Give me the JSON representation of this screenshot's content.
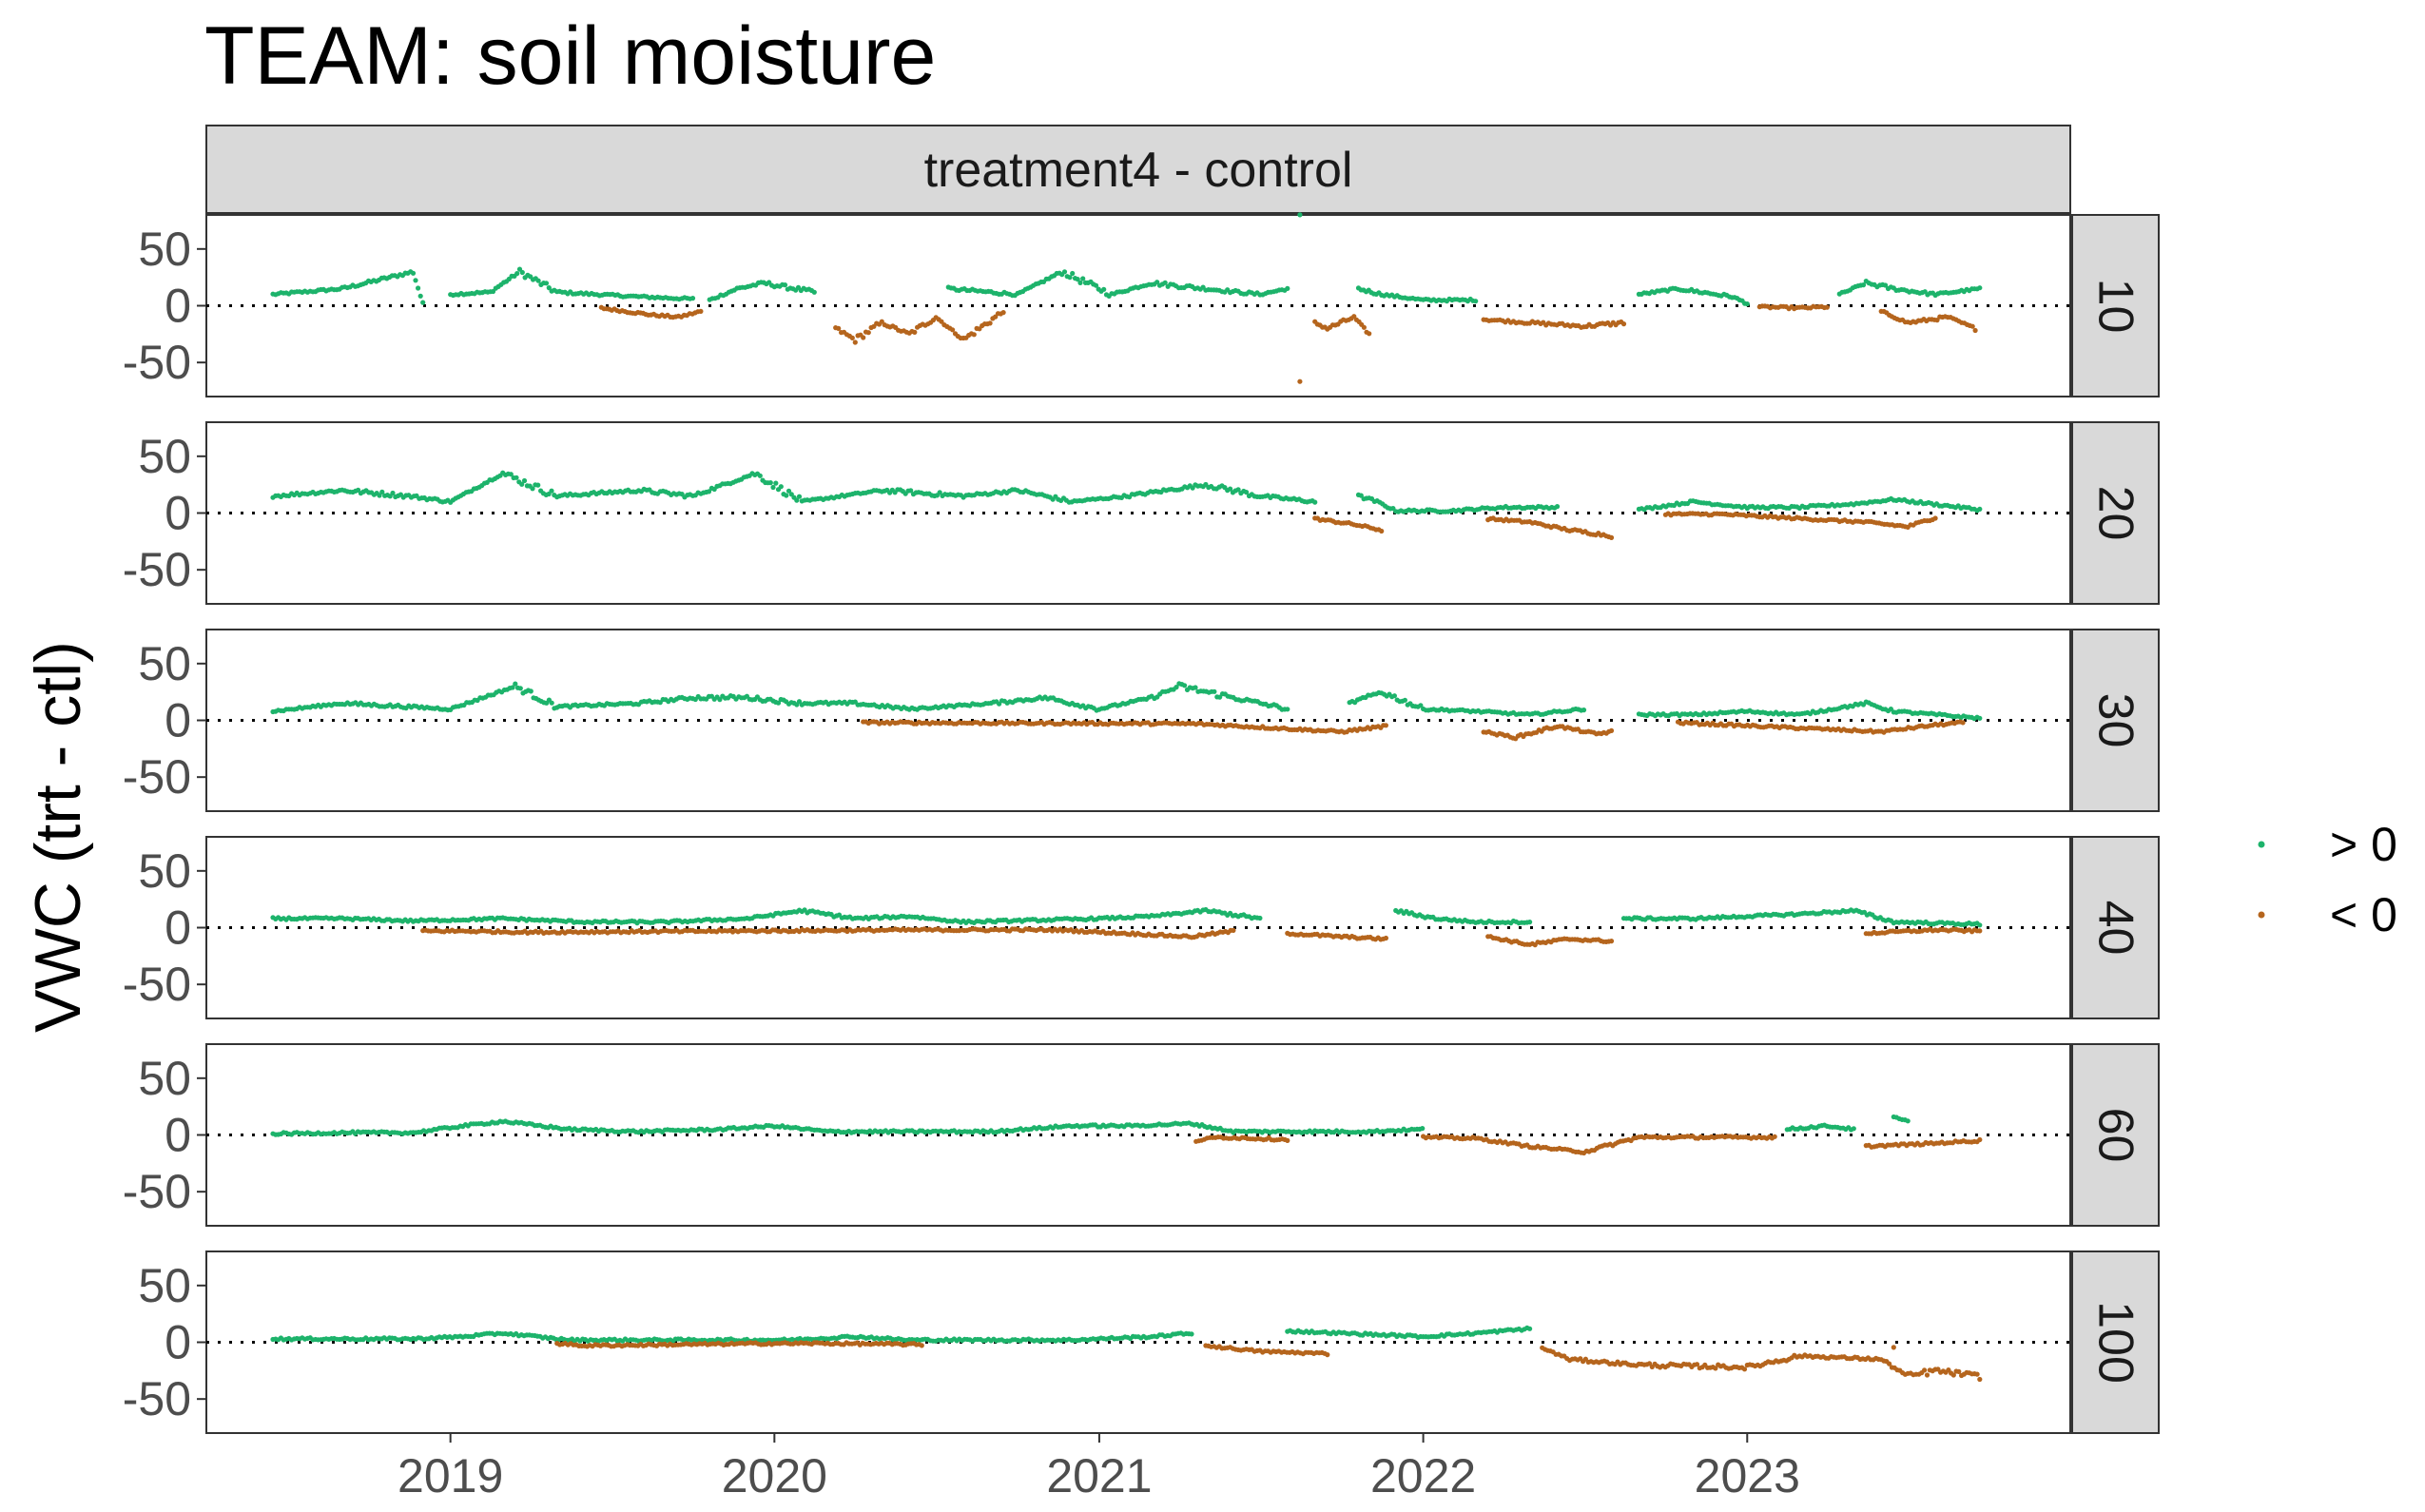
{
  "chart_data": {
    "type": "scatter",
    "title": "TEAM: soil moisture",
    "column_strip": "treatment4 - control",
    "ylabel": "VWC (trt - ctl)",
    "xlabel": "",
    "ylim": [
      -80,
      80
    ],
    "xlim": [
      "2018-04-01",
      "2023-12-31"
    ],
    "y_ticks": [
      50,
      0,
      -50
    ],
    "y_tick_labels": [
      "50",
      "0",
      "-50"
    ],
    "x_ticks": [
      "2019-01-01",
      "2020-01-01",
      "2021-01-01",
      "2022-01-01",
      "2023-01-01"
    ],
    "x_tick_labels": [
      "2019",
      "2020",
      "2021",
      "2022",
      "2023"
    ],
    "reference_line": {
      "y": 0,
      "style": "dotted",
      "color": "#000000"
    },
    "grid": false,
    "legend": {
      "placement": "right",
      "entries": [
        {
          "label": "> 0",
          "color": "#1db36b"
        },
        {
          "label": "< 0",
          "color": "#b5651d"
        }
      ]
    },
    "colors": {
      "positive": "#1db36b",
      "negative": "#b5651d"
    },
    "panels": [
      {
        "depth": "10",
        "series": [
          {
            "x": [
              "2018-06-15",
              "2018-09-01",
              "2018-11-20",
              "2018-12-01"
            ],
            "y": [
              10,
              15,
              30,
              2
            ]
          },
          {
            "x": [
              "2019-01-01",
              "2019-02-15",
              "2019-03-20",
              "2019-05-01",
              "2019-06-15",
              "2019-08-01",
              "2019-10-01"
            ],
            "y": [
              10,
              12,
              30,
              12,
              10,
              8,
              6
            ]
          },
          {
            "x": [
              "2019-06-20",
              "2019-08-15",
              "2019-09-15",
              "2019-10-10"
            ],
            "y": [
              -2,
              -8,
              -10,
              -5
            ]
          },
          {
            "x": [
              "2019-10-20",
              "2019-11-20",
              "2019-12-20",
              "2020-02-15"
            ],
            "y": [
              5,
              15,
              20,
              12
            ]
          },
          {
            "x": [
              "2020-03-10",
              "2020-04-01",
              "2020-05-01",
              "2020-06-01",
              "2020-07-01",
              "2020-08-01",
              "2020-09-15"
            ],
            "y": [
              -20,
              -30,
              -15,
              -25,
              -10,
              -30,
              -5
            ]
          },
          {
            "x": [
              "2020-07-15",
              "2020-10-01",
              "2020-11-20",
              "2021-01-15",
              "2021-03-01",
              "2021-05-01",
              "2021-07-01",
              "2021-08-01"
            ],
            "y": [
              15,
              10,
              30,
              10,
              20,
              15,
              10,
              15
            ]
          },
          {
            "x": [
              "2021-08-15"
            ],
            "y": [
              75
            ]
          },
          {
            "x": [
              "2021-08-15"
            ],
            "y": [
              -70
            ]
          },
          {
            "x": [
              "2021-09-01",
              "2021-09-15",
              "2021-10-15",
              "2021-11-01"
            ],
            "y": [
              -15,
              -20,
              -10,
              -25
            ]
          },
          {
            "x": [
              "2021-10-20",
              "2021-11-15",
              "2022-01-01",
              "2022-03-01"
            ],
            "y": [
              15,
              10,
              5,
              5
            ]
          },
          {
            "x": [
              "2022-03-10",
              "2022-05-01",
              "2022-07-01",
              "2022-08-15"
            ],
            "y": [
              -12,
              -15,
              -18,
              -15
            ]
          },
          {
            "x": [
              "2022-09-01",
              "2022-10-15",
              "2022-12-15",
              "2023-01-01"
            ],
            "y": [
              10,
              15,
              8,
              2
            ]
          },
          {
            "x": [
              "2023-01-15",
              "2023-03-01",
              "2023-04-01"
            ],
            "y": [
              -1,
              -2,
              -1
            ]
          },
          {
            "x": [
              "2023-04-15",
              "2023-05-15",
              "2023-06-15",
              "2023-08-01",
              "2023-09-20"
            ],
            "y": [
              10,
              20,
              15,
              10,
              15
            ]
          },
          {
            "x": [
              "2023-06-01",
              "2023-07-01",
              "2023-08-15",
              "2023-09-15"
            ],
            "y": [
              -5,
              -15,
              -10,
              -20
            ]
          }
        ]
      },
      {
        "depth": "20",
        "series": [
          {
            "x": [
              "2018-06-15",
              "2018-09-01",
              "2018-11-15",
              "2019-01-01",
              "2019-03-01",
              "2019-05-01",
              "2019-08-01",
              "2019-10-01",
              "2019-12-10",
              "2020-02-01",
              "2020-05-01",
              "2020-08-01",
              "2020-10-01",
              "2020-12-01",
              "2021-02-01",
              "2021-05-01",
              "2021-07-01",
              "2021-09-01"
            ],
            "y": [
              15,
              20,
              15,
              10,
              35,
              15,
              20,
              15,
              35,
              10,
              20,
              15,
              20,
              10,
              15,
              25,
              15,
              10
            ]
          },
          {
            "x": [
              "2021-09-01",
              "2021-10-15",
              "2021-11-15"
            ],
            "y": [
              -5,
              -10,
              -15
            ]
          },
          {
            "x": [
              "2021-10-20",
              "2021-11-10",
              "2021-12-01",
              "2022-02-01",
              "2022-04-01",
              "2022-06-01"
            ],
            "y": [
              15,
              10,
              2,
              2,
              5,
              5
            ]
          },
          {
            "x": [
              "2022-03-15",
              "2022-05-01",
              "2022-06-15",
              "2022-08-01"
            ],
            "y": [
              -5,
              -8,
              -15,
              -20
            ]
          },
          {
            "x": [
              "2022-09-01",
              "2022-11-01",
              "2023-01-01",
              "2023-03-01",
              "2023-05-01",
              "2023-06-15",
              "2023-09-20"
            ],
            "y": [
              3,
              10,
              5,
              5,
              8,
              12,
              3
            ]
          },
          {
            "x": [
              "2022-10-01",
              "2022-12-01",
              "2023-05-15",
              "2023-07-01",
              "2023-08-01"
            ],
            "y": [
              -1,
              -1,
              -8,
              -12,
              -4
            ]
          }
        ]
      },
      {
        "depth": "30",
        "series": [
          {
            "x": [
              "2018-06-15",
              "2018-09-01",
              "2018-11-15",
              "2019-01-01",
              "2019-03-15",
              "2019-05-01",
              "2019-08-01",
              "2019-10-01",
              "2019-12-01",
              "2020-02-01",
              "2020-04-01",
              "2020-06-01",
              "2020-09-01",
              "2020-11-01",
              "2021-01-01",
              "2021-03-01",
              "2021-04-01",
              "2021-06-01",
              "2021-08-01"
            ],
            "y": [
              8,
              15,
              12,
              10,
              30,
              12,
              15,
              20,
              20,
              15,
              15,
              10,
              15,
              20,
              10,
              20,
              30,
              20,
              10
            ]
          },
          {
            "x": [
              "2020-04-10",
              "2021-04-20",
              "2021-08-15",
              "2021-10-01",
              "2021-11-20"
            ],
            "y": [
              -2,
              -3,
              -8,
              -10,
              -5
            ]
          },
          {
            "x": [
              "2021-10-10",
              "2021-11-15",
              "2022-01-01",
              "2022-03-01",
              "2022-05-01",
              "2022-07-01"
            ],
            "y": [
              15,
              25,
              10,
              8,
              5,
              10
            ]
          },
          {
            "x": [
              "2022-03-10",
              "2022-04-15",
              "2022-06-01",
              "2022-07-15",
              "2022-08-01"
            ],
            "y": [
              -10,
              -15,
              -5,
              -12,
              -10
            ]
          },
          {
            "x": [
              "2022-09-01",
              "2022-11-01",
              "2023-01-01",
              "2023-03-01",
              "2023-05-15",
              "2023-06-15",
              "2023-09-20"
            ],
            "y": [
              5,
              5,
              8,
              5,
              15,
              8,
              2
            ]
          },
          {
            "x": [
              "2022-10-15",
              "2023-06-01",
              "2023-08-01",
              "2023-09-01"
            ],
            "y": [
              -2,
              -10,
              -4,
              -2
            ]
          }
        ]
      },
      {
        "depth": "40",
        "series": [
          {
            "x": [
              "2018-06-15",
              "2018-09-01",
              "2018-11-20",
              "2019-03-01",
              "2019-06-01",
              "2019-09-01",
              "2019-12-01",
              "2020-02-01",
              "2020-04-01",
              "2020-06-01",
              "2020-08-01",
              "2021-01-01",
              "2021-03-01",
              "2021-05-01",
              "2021-07-01"
            ],
            "y": [
              8,
              8,
              6,
              8,
              5,
              5,
              8,
              15,
              8,
              10,
              5,
              8,
              10,
              15,
              8
            ]
          },
          {
            "x": [
              "2018-12-01",
              "2019-01-15",
              "2019-04-01",
              "2020-06-15",
              "2020-09-01",
              "2020-11-15",
              "2021-04-15",
              "2021-06-01"
            ],
            "y": [
              -3,
              -3,
              -4,
              -2,
              -2,
              -2,
              -8,
              -3
            ]
          },
          {
            "x": [
              "2021-08-01",
              "2021-10-01",
              "2021-11-20"
            ],
            "y": [
              -5,
              -8,
              -10
            ]
          },
          {
            "x": [
              "2021-12-01",
              "2022-01-15",
              "2022-03-01",
              "2022-05-01"
            ],
            "y": [
              15,
              8,
              5,
              5
            ]
          },
          {
            "x": [
              "2022-03-15",
              "2022-05-01",
              "2022-06-15",
              "2022-08-01"
            ],
            "y": [
              -8,
              -15,
              -10,
              -12
            ]
          },
          {
            "x": [
              "2022-08-15",
              "2022-11-01",
              "2023-01-01",
              "2023-03-01",
              "2023-05-01",
              "2023-06-15",
              "2023-09-20"
            ],
            "y": [
              8,
              8,
              10,
              12,
              15,
              5,
              3
            ]
          },
          {
            "x": [
              "2023-05-15",
              "2023-08-01",
              "2023-09-20"
            ],
            "y": [
              -5,
              -2,
              -3
            ]
          }
        ]
      },
      {
        "depth": "60",
        "series": [
          {
            "x": [
              "2018-06-15",
              "2018-09-01",
              "2018-11-20",
              "2019-01-15",
              "2019-03-01",
              "2019-05-15",
              "2019-08-01",
              "2019-11-01",
              "2020-01-01",
              "2020-03-01",
              "2020-06-01",
              "2020-09-01",
              "2020-12-01",
              "2021-02-01",
              "2021-04-15",
              "2021-06-01",
              "2021-09-01",
              "2021-11-01",
              "2021-12-31"
            ],
            "y": [
              1,
              2,
              2,
              8,
              12,
              5,
              3,
              5,
              8,
              3,
              3,
              3,
              8,
              8,
              10,
              3,
              3,
              3,
              5
            ]
          },
          {
            "x": [
              "2021-04-20",
              "2021-05-15",
              "2021-08-01"
            ],
            "y": [
              -5,
              -2,
              -4
            ]
          },
          {
            "x": [
              "2022-01-01",
              "2022-03-01",
              "2022-05-01",
              "2022-07-01",
              "2022-09-01",
              "2022-12-01",
              "2023-02-01"
            ],
            "y": [
              -2,
              -3,
              -10,
              -15,
              -2,
              -2,
              -2
            ]
          },
          {
            "x": [
              "2023-02-15",
              "2023-04-01",
              "2023-05-01"
            ],
            "y": [
              5,
              8,
              5
            ]
          },
          {
            "x": [
              "2023-06-15",
              "2023-07-01"
            ],
            "y": [
              15,
              12
            ]
          },
          {
            "x": [
              "2023-05-15",
              "2023-07-15",
              "2023-09-20"
            ],
            "y": [
              -10,
              -8,
              -5
            ]
          }
        ]
      },
      {
        "depth": "100",
        "series": [
          {
            "x": [
              "2018-06-15",
              "2018-09-01",
              "2018-11-20",
              "2019-01-15",
              "2019-03-01",
              "2019-05-15",
              "2019-08-01",
              "2019-11-01",
              "2020-01-15",
              "2020-04-01",
              "2020-06-01",
              "2020-09-01",
              "2020-12-01",
              "2021-03-01",
              "2021-04-15"
            ],
            "y": [
              3,
              3,
              3,
              5,
              8,
              2,
              2,
              2,
              2,
              5,
              2,
              2,
              2,
              5,
              8
            ]
          },
          {
            "x": [
              "2019-05-01",
              "2019-06-01",
              "2020-01-01",
              "2020-03-01",
              "2020-06-15"
            ],
            "y": [
              -1,
              -3,
              -1,
              -1,
              -2
            ]
          },
          {
            "x": [
              "2021-05-01",
              "2021-07-01",
              "2021-09-15"
            ],
            "y": [
              -3,
              -8,
              -10
            ]
          },
          {
            "x": [
              "2021-08-01",
              "2021-10-01",
              "2022-01-01",
              "2022-03-01",
              "2022-05-01"
            ],
            "y": [
              10,
              8,
              5,
              8,
              12
            ]
          },
          {
            "x": [
              "2022-05-15",
              "2022-06-15",
              "2022-09-01",
              "2023-01-01",
              "2023-03-01",
              "2023-06-01",
              "2023-07-01",
              "2023-08-01",
              "2023-09-20"
            ],
            "y": [
              -5,
              -15,
              -20,
              -22,
              -12,
              -15,
              -30,
              -25,
              -30
            ]
          },
          {
            "x": [
              "2023-06-15"
            ],
            "y": [
              -5
            ]
          }
        ]
      }
    ]
  }
}
